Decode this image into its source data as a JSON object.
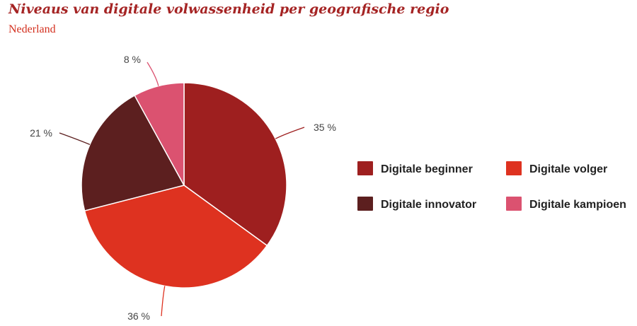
{
  "title": "Niveaus van digitale volwassenheid per geografische regio",
  "subtitle": "Nederland",
  "chart_data": {
    "type": "pie",
    "title": "Niveaus van digitale volwassenheid per geografische regio",
    "subtitle": "Nederland",
    "unit": "%",
    "legend_position": "right",
    "slices": [
      {
        "name": "Digitale beginner",
        "value": 35,
        "label": "35 %",
        "color": "#9e1f1f"
      },
      {
        "name": "Digitale volger",
        "value": 36,
        "label": "36 %",
        "color": "#de3220"
      },
      {
        "name": "Digitale innovator",
        "value": 21,
        "label": "21 %",
        "color": "#5c1f1f"
      },
      {
        "name": "Digitale kampioen",
        "value": 8,
        "label": "8 %",
        "color": "#db5270"
      }
    ]
  }
}
